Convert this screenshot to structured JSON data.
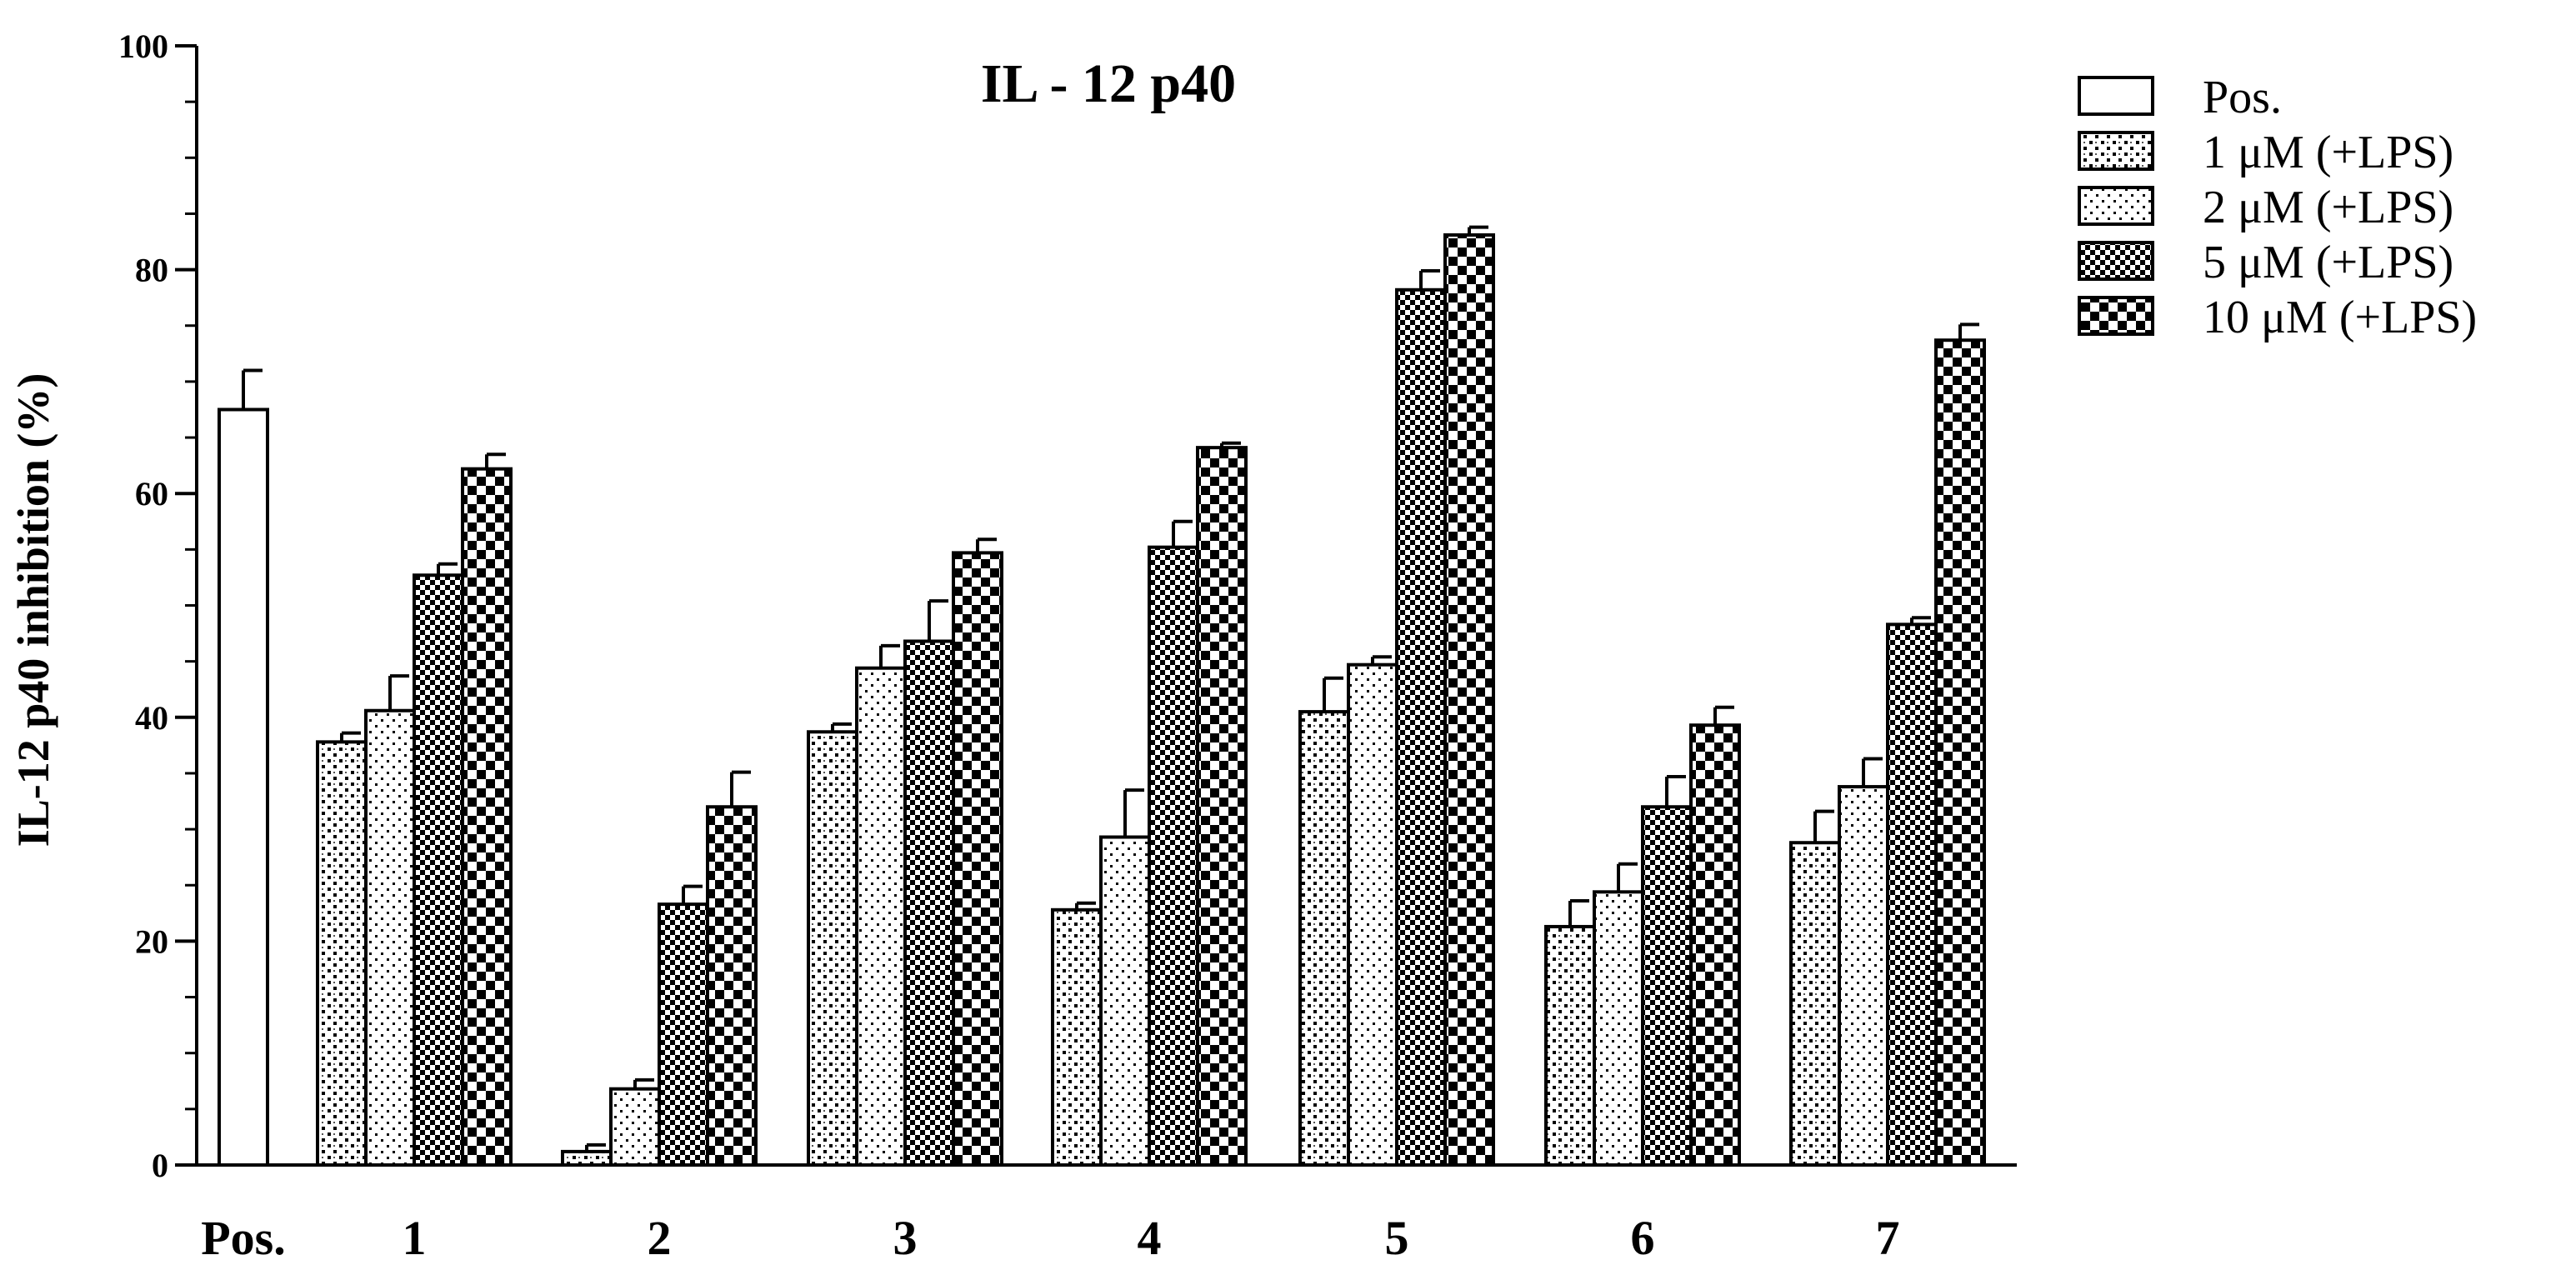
{
  "chart_data": {
    "type": "bar",
    "title": "IL - 12 p40",
    "ylabel": "IL-12 p40 inhibition (%)",
    "xlabel": "",
    "ylim": [
      0,
      100
    ],
    "yticks": [
      0,
      20,
      40,
      60,
      80,
      100
    ],
    "grid": false,
    "legend_position": "right",
    "categories": [
      "Pos.",
      "1",
      "2",
      "3",
      "4",
      "5",
      "6",
      "7"
    ],
    "series": [
      {
        "name": "Pos.",
        "pattern": "open",
        "values": [
          67.5,
          null,
          null,
          null,
          null,
          null,
          null,
          null
        ],
        "errors": [
          3.5,
          null,
          null,
          null,
          null,
          null,
          null,
          null
        ]
      },
      {
        "name": "1  μM (+LPS)",
        "pattern": "sparse-dots",
        "values": [
          null,
          37.8,
          1.2,
          38.7,
          22.8,
          40.5,
          21.3,
          28.8
        ],
        "errors": [
          null,
          0.8,
          0.6,
          0.7,
          0.6,
          3.0,
          2.3,
          2.8
        ]
      },
      {
        "name": "2  μM (+LPS)",
        "pattern": "fine-dots",
        "values": [
          null,
          40.6,
          6.8,
          44.4,
          29.3,
          44.7,
          24.4,
          33.8
        ],
        "errors": [
          null,
          3.1,
          0.8,
          2.0,
          4.2,
          0.7,
          2.5,
          2.5
        ]
      },
      {
        "name": "5  μM (+LPS)",
        "pattern": "small-checker",
        "values": [
          null,
          52.7,
          23.3,
          46.8,
          55.2,
          78.2,
          32.0,
          48.3
        ],
        "errors": [
          null,
          1.0,
          1.6,
          3.6,
          2.3,
          1.7,
          2.7,
          0.6
        ]
      },
      {
        "name": "10 μM (+LPS)",
        "pattern": "large-checker",
        "values": [
          null,
          62.2,
          32.0,
          54.7,
          64.1,
          83.1,
          39.3,
          73.7
        ],
        "errors": [
          null,
          1.3,
          3.1,
          1.2,
          0.4,
          0.7,
          1.6,
          1.4
        ]
      }
    ]
  }
}
